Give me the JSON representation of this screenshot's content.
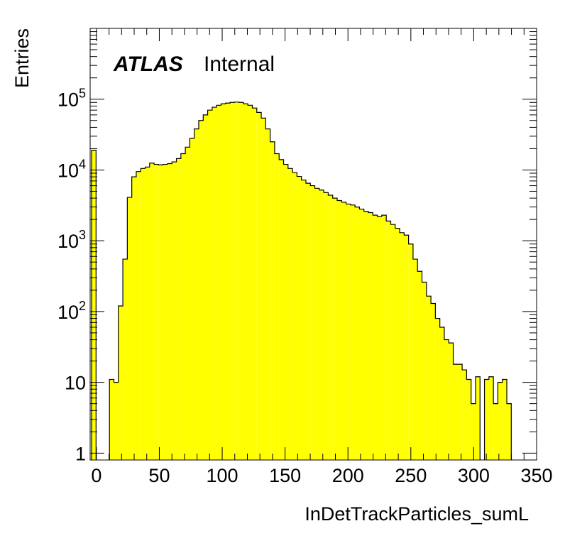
{
  "chart_data": {
    "type": "bar",
    "title": "",
    "xlabel": "InDetTrackParticles_sumL",
    "ylabel": "Entries",
    "xlim": [
      -5,
      350
    ],
    "ylim": [
      0.8,
      1000000
    ],
    "yscale": "log",
    "bin_width": 3.55,
    "fill_color": "#ffff00",
    "line_color": "#000000",
    "annotation": {
      "bold": "ATLAS",
      "normal": "Internal"
    },
    "x_ticks": [
      {
        "value": 0,
        "label": "0"
      },
      {
        "value": 50,
        "label": "50"
      },
      {
        "value": 100,
        "label": "100"
      },
      {
        "value": 150,
        "label": "150"
      },
      {
        "value": 200,
        "label": "200"
      },
      {
        "value": 250,
        "label": "250"
      },
      {
        "value": 300,
        "label": "300"
      },
      {
        "value": 350,
        "label": "350"
      }
    ],
    "y_ticks": [
      {
        "value": 1,
        "base": "1",
        "exp": ""
      },
      {
        "value": 10,
        "base": "10",
        "exp": ""
      },
      {
        "value": 100,
        "base": "10",
        "exp": "2"
      },
      {
        "value": 1000,
        "base": "10",
        "exp": "3"
      },
      {
        "value": 10000,
        "base": "10",
        "exp": "4"
      },
      {
        "value": 100000,
        "base": "10",
        "exp": "5"
      }
    ],
    "bins_x0": [
      -3.85,
      -0.3,
      3.25,
      6.8,
      10.35,
      13.9,
      17.45,
      21.0,
      24.55,
      28.1,
      31.65,
      35.2,
      38.75,
      42.3,
      45.85,
      49.4,
      52.95,
      56.5,
      60.05,
      63.6,
      67.15,
      70.7,
      74.25,
      77.8,
      81.35,
      84.9,
      88.45,
      92.0,
      95.55,
      99.1,
      102.65,
      106.2,
      109.75,
      113.3,
      116.85,
      120.4,
      123.95,
      127.5,
      131.05,
      134.6,
      138.15,
      141.7,
      145.25,
      148.8,
      152.35,
      155.9,
      159.45,
      163.0,
      166.55,
      170.1,
      173.65,
      177.2,
      180.75,
      184.3,
      187.85,
      191.4,
      194.95,
      198.5,
      202.05,
      205.6,
      209.15,
      212.7,
      216.25,
      219.8,
      223.35,
      226.9,
      230.45,
      234.0,
      237.55,
      241.1,
      244.65,
      248.2,
      251.75,
      255.3,
      258.85,
      262.4,
      265.95,
      269.5,
      273.05,
      276.6,
      280.15,
      283.7,
      287.25,
      290.8,
      294.35,
      297.9,
      301.45,
      305.0,
      308.55,
      312.1,
      315.65,
      319.2,
      322.75,
      326.3,
      329.85
    ],
    "bins_y": [
      19000,
      0,
      0,
      0,
      11,
      10,
      120,
      550,
      4100,
      8000,
      9500,
      10500,
      11000,
      12500,
      12000,
      11800,
      12000,
      12300,
      13000,
      14500,
      17000,
      21000,
      28000,
      38000,
      50000,
      60000,
      70000,
      77000,
      82000,
      86000,
      88000,
      90000,
      91000,
      90000,
      86000,
      82000,
      75000,
      65000,
      54000,
      38000,
      25000,
      17000,
      14000,
      12000,
      10500,
      9200,
      8100,
      7200,
      6500,
      6000,
      5500,
      5200,
      4800,
      4400,
      4000,
      3700,
      3500,
      3300,
      3200,
      3000,
      2800,
      2600,
      2500,
      2300,
      2200,
      2300,
      1900,
      1700,
      1500,
      1300,
      1200,
      900,
      550,
      370,
      260,
      165,
      130,
      80,
      60,
      40,
      36,
      18,
      18,
      15,
      11,
      5,
      12,
      0,
      11,
      12,
      5,
      10,
      11,
      5,
      0
    ]
  }
}
